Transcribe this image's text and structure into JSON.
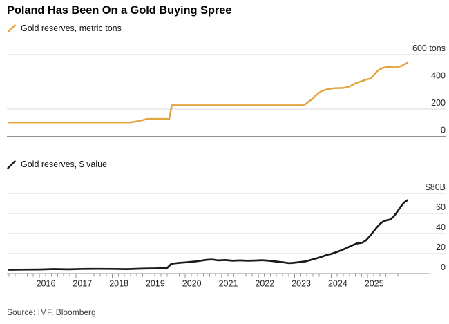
{
  "title": "Poland Has Been On a Gold Buying Spree",
  "source": "Source: IMF, Bloomberg",
  "colors": {
    "gold": "#E2A43F",
    "ink": "#1A1A1A",
    "grid": "#D8D8D8",
    "axis": "#909090",
    "label": "#262626",
    "background": "#FFFFFF"
  },
  "chart_data": [
    {
      "type": "line",
      "id": "tons",
      "legend": "Gold reserves, metric tons",
      "color_key": "gold",
      "ylabel": "metric tons",
      "ylim": [
        0,
        600
      ],
      "xlim": [
        2015.15,
        2026.1
      ],
      "grid": true,
      "y_ticks": [
        {
          "v": 0,
          "label": "0"
        },
        {
          "v": 200,
          "label": "200"
        },
        {
          "v": 400,
          "label": "400"
        },
        {
          "v": 600,
          "label": "600 tons"
        }
      ],
      "x": [
        2015.15,
        2018.45,
        2018.55,
        2018.63,
        2018.71,
        2018.79,
        2018.88,
        2018.96,
        2019.56,
        2019.63,
        2023.25,
        2023.33,
        2023.42,
        2023.5,
        2023.58,
        2023.67,
        2023.75,
        2023.83,
        2023.92,
        2024.0,
        2024.08,
        2024.33,
        2024.42,
        2024.5,
        2024.58,
        2024.67,
        2024.75,
        2024.83,
        2024.92,
        2025.0,
        2025.08,
        2025.17,
        2025.25,
        2025.33,
        2025.42,
        2025.5,
        2025.58,
        2025.67,
        2025.75,
        2025.83,
        2025.92,
        2026.0,
        2026.1
      ],
      "values": [
        103,
        103,
        105,
        109,
        113,
        117,
        123,
        128.6,
        128.6,
        228.6,
        228.6,
        244,
        263,
        277,
        301,
        320,
        334,
        340,
        347,
        350,
        353,
        355,
        360,
        366,
        377,
        390,
        398,
        405,
        413,
        420,
        424,
        450,
        475,
        492,
        503,
        507,
        509,
        508,
        506,
        509,
        515,
        528,
        540
      ]
    },
    {
      "type": "line",
      "id": "usd",
      "legend": "Gold reserves, $ value",
      "color_key": "ink",
      "ylabel": "$ billions",
      "ylim": [
        0,
        80
      ],
      "xlim": [
        2015.15,
        2026.1
      ],
      "grid": true,
      "y_ticks": [
        {
          "v": 0,
          "label": "0"
        },
        {
          "v": 20,
          "label": "20"
        },
        {
          "v": 40,
          "label": "40"
        },
        {
          "v": 60,
          "label": "60"
        },
        {
          "v": 80,
          "label": "$80B"
        }
      ],
      "x_axis_year_labels": [
        "2016",
        "2017",
        "2018",
        "2019",
        "2020",
        "2021",
        "2022",
        "2023",
        "2024",
        "2025"
      ],
      "x": [
        2015.15,
        2015.5,
        2016.0,
        2016.4,
        2016.8,
        2017.2,
        2017.6,
        2018.0,
        2018.4,
        2018.8,
        2019.2,
        2019.5,
        2019.62,
        2019.8,
        2020.0,
        2020.3,
        2020.6,
        2020.75,
        2020.9,
        2021.1,
        2021.3,
        2021.5,
        2021.7,
        2021.9,
        2022.1,
        2022.3,
        2022.5,
        2022.7,
        2022.85,
        2022.95,
        2023.1,
        2023.3,
        2023.5,
        2023.7,
        2023.9,
        2024.0,
        2024.15,
        2024.3,
        2024.45,
        2024.6,
        2024.7,
        2024.85,
        2024.95,
        2025.05,
        2025.15,
        2025.25,
        2025.35,
        2025.45,
        2025.55,
        2025.62,
        2025.7,
        2025.8,
        2025.9,
        2026.0,
        2026.1
      ],
      "values": [
        3.8,
        3.9,
        4.1,
        4.5,
        4.2,
        4.6,
        4.7,
        4.6,
        4.4,
        4.9,
        5.2,
        5.5,
        9.8,
        10.6,
        11.2,
        12.2,
        13.8,
        14.0,
        13.2,
        13.5,
        12.8,
        13.2,
        12.8,
        13.0,
        13.4,
        12.8,
        12.0,
        11.2,
        10.4,
        10.7,
        11.3,
        12.2,
        14.2,
        16.3,
        18.8,
        19.5,
        21.5,
        23.5,
        26.0,
        28.5,
        30.0,
        30.8,
        33.0,
        37.0,
        41.5,
        46.0,
        50.0,
        52.5,
        53.5,
        54.0,
        56.5,
        61.0,
        66.5,
        71.0,
        73.5
      ]
    }
  ]
}
